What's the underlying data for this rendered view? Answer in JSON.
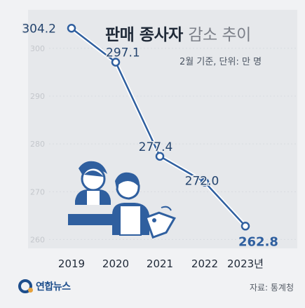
{
  "chart_data": {
    "type": "line",
    "title": "판매 종사자 감소 추이",
    "title_bold": "판매 종사자",
    "title_light": "감소 추이",
    "subtitle": "2월 기준, 단위: 만 명",
    "categories": [
      "2019",
      "2020",
      "2021",
      "2022",
      "2023년"
    ],
    "values": [
      304.2,
      297.1,
      277.4,
      272.0,
      262.8
    ],
    "value_labels": [
      "304.2",
      "297.1",
      "277.4",
      "272.0",
      "262.8"
    ],
    "y_ticks": [
      260,
      270,
      280,
      290,
      300
    ],
    "ylim": [
      258,
      306
    ],
    "grid": true,
    "colors": {
      "line": "#2f5f9f",
      "halo": "#ffffff",
      "text": "#24446e",
      "last_label": "#2f5f9f",
      "tick": "#c4c7cc",
      "grid": "#d8dbe0"
    }
  },
  "footer": {
    "logo_text": "연합뉴스",
    "source": "자료: 통계청"
  },
  "illustration": {
    "icons": [
      "worker-woman-icon",
      "worker-man-icon",
      "price-tag-icon"
    ]
  }
}
